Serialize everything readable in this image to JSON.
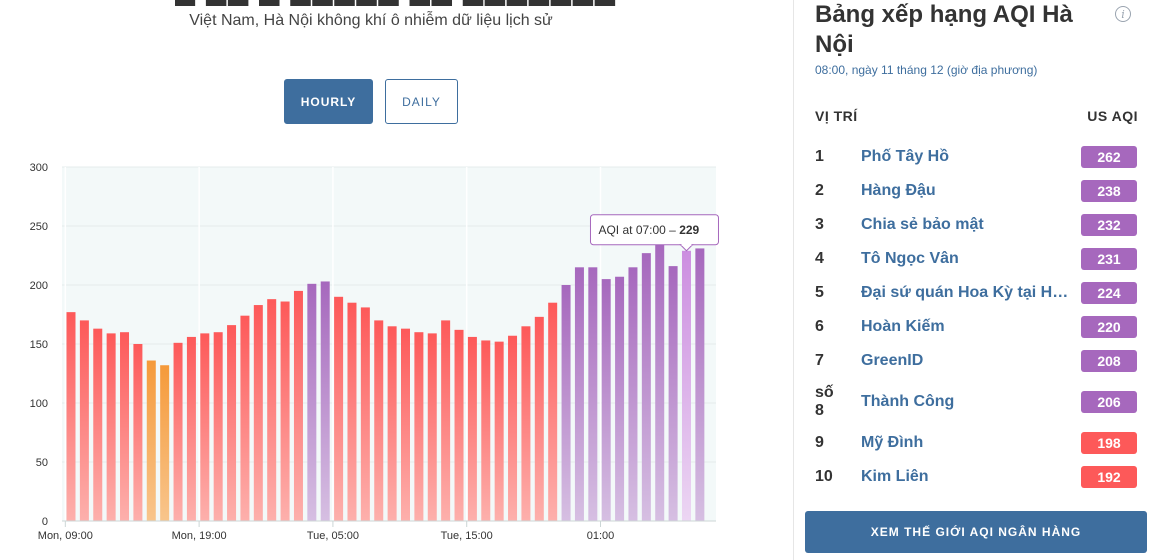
{
  "header": {
    "subtitle": "Việt Nam, Hà Nội không khí ô nhiễm dữ liệu lịch sử"
  },
  "toggle": {
    "hourly": "HOURLY",
    "daily": "DAILY"
  },
  "chart_data": {
    "type": "bar",
    "title": "",
    "xlabel": "",
    "ylabel": "",
    "ylim": [
      0,
      300
    ],
    "y_ticks": [
      0,
      50,
      100,
      150,
      200,
      250,
      300
    ],
    "x_tick_labels": [
      "Mon, 09:00",
      "Mon, 19:00",
      "Tue, 05:00",
      "Tue, 15:00",
      "01:00"
    ],
    "x_tick_indices": [
      0,
      10,
      20,
      30,
      40
    ],
    "grid": true,
    "values": [
      177,
      170,
      163,
      159,
      160,
      150,
      136,
      132,
      151,
      156,
      159,
      160,
      166,
      174,
      183,
      188,
      186,
      195,
      201,
      203,
      190,
      185,
      181,
      170,
      165,
      163,
      160,
      159,
      170,
      162,
      156,
      153,
      152,
      157,
      165,
      173,
      185,
      200,
      215,
      215,
      205,
      207,
      215,
      227,
      236,
      216,
      229,
      231
    ],
    "highlight_index": 46,
    "tooltip": {
      "prefix": "AQI at 07:00 – ",
      "value": "229"
    },
    "colors": {
      "red_top": "#fd5959",
      "red_bottom": "#fdb0ac",
      "orange_top": "#f59a3a",
      "orange_bottom": "#f8c58c",
      "purple_top": "#a668bd",
      "purple_bottom": "#d6bfe2",
      "highlight_top": "#cc8ee0",
      "highlight_bottom": "#ecd6f3",
      "plot_bg": "#f3f9f9"
    }
  },
  "ranking": {
    "title": "Bảng xếp hạng AQI Hà Nội",
    "time": "08:00, ngày 11 tháng 12 (giờ địa phương)",
    "col_position": "VỊ TRÍ",
    "col_aqi": "US AQI",
    "rows": [
      {
        "rank": "1",
        "name": "Phố Tây Hồ",
        "aqi": "262",
        "color": "#a668bd"
      },
      {
        "rank": "2",
        "name": "Hàng Đậu",
        "aqi": "238",
        "color": "#a668bd"
      },
      {
        "rank": "3",
        "name": "Chia sẻ bảo mật",
        "aqi": "232",
        "color": "#a668bd"
      },
      {
        "rank": "4",
        "name": "Tô Ngọc Vân",
        "aqi": "231",
        "color": "#a668bd"
      },
      {
        "rank": "5",
        "name": "Đại sứ quán Hoa Kỳ tại Hà Nội",
        "aqi": "224",
        "color": "#a668bd"
      },
      {
        "rank": "6",
        "name": "Hoàn Kiếm",
        "aqi": "220",
        "color": "#a668bd"
      },
      {
        "rank": "7",
        "name": "GreenID",
        "aqi": "208",
        "color": "#a668bd"
      },
      {
        "rank": "số 8",
        "name": "Thành Công",
        "aqi": "206",
        "color": "#a668bd"
      },
      {
        "rank": "9",
        "name": "Mỹ Đình",
        "aqi": "198",
        "color": "#fd5959"
      },
      {
        "rank": "10",
        "name": "Kim Liên",
        "aqi": "192",
        "color": "#fd5959"
      }
    ],
    "world_button": "XEM THẾ GIỚI AQI NGÂN HÀNG"
  }
}
